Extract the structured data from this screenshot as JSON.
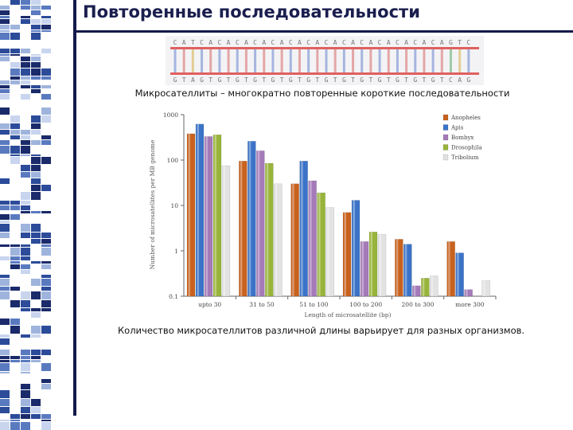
{
  "slide": {
    "title": "Повторенные последовательности",
    "caption_top": "Микросателлиты – многократно повторенные короткие последовательности",
    "caption_bottom": "Количество микросателлитов различной длины варьирует для разных организмов."
  },
  "dna_strip": {
    "top_strand": "CATCACACACACACACACACACACACACACAGTC",
    "bottom_strand": "GTAGTGTGTGTGTGTGTGTGTGTGTGTGTGTCAG"
  },
  "colors": {
    "frame": "#141a4a",
    "title": "#1a1e4e"
  },
  "chart_data": {
    "type": "bar",
    "title": "",
    "xlabel": "Length of microsatellite (bp)",
    "ylabel": "Number of microsatellites per MB genome",
    "yscale": "log",
    "ylim": [
      0.1,
      1000
    ],
    "yticks": [
      "1000",
      "100",
      "10",
      "1",
      "0.1"
    ],
    "grid": false,
    "legend_position": "top-right",
    "categories": [
      "upto 30",
      "31 to 50",
      "51 to 100",
      "100 to 200",
      "200 to 300",
      "more 300"
    ],
    "series": [
      {
        "name": "Anopheles",
        "color": "#c8621e",
        "values": [
          380,
          95,
          30,
          7,
          1.8,
          1.6
        ]
      },
      {
        "name": "Apis",
        "color": "#3b73c8",
        "values": [
          620,
          260,
          95,
          13,
          1.4,
          0.9
        ]
      },
      {
        "name": "Bombyx",
        "color": "#a47ab8",
        "values": [
          330,
          160,
          35,
          1.6,
          0.17,
          0.14
        ]
      },
      {
        "name": "Drosophila",
        "color": "#98b43a",
        "values": [
          360,
          85,
          19,
          2.6,
          0.25,
          0.1
        ]
      },
      {
        "name": "Tribolium",
        "color": "#e2e2e2",
        "values": [
          75,
          30,
          9,
          2.3,
          0.28,
          0.22
        ]
      }
    ]
  }
}
